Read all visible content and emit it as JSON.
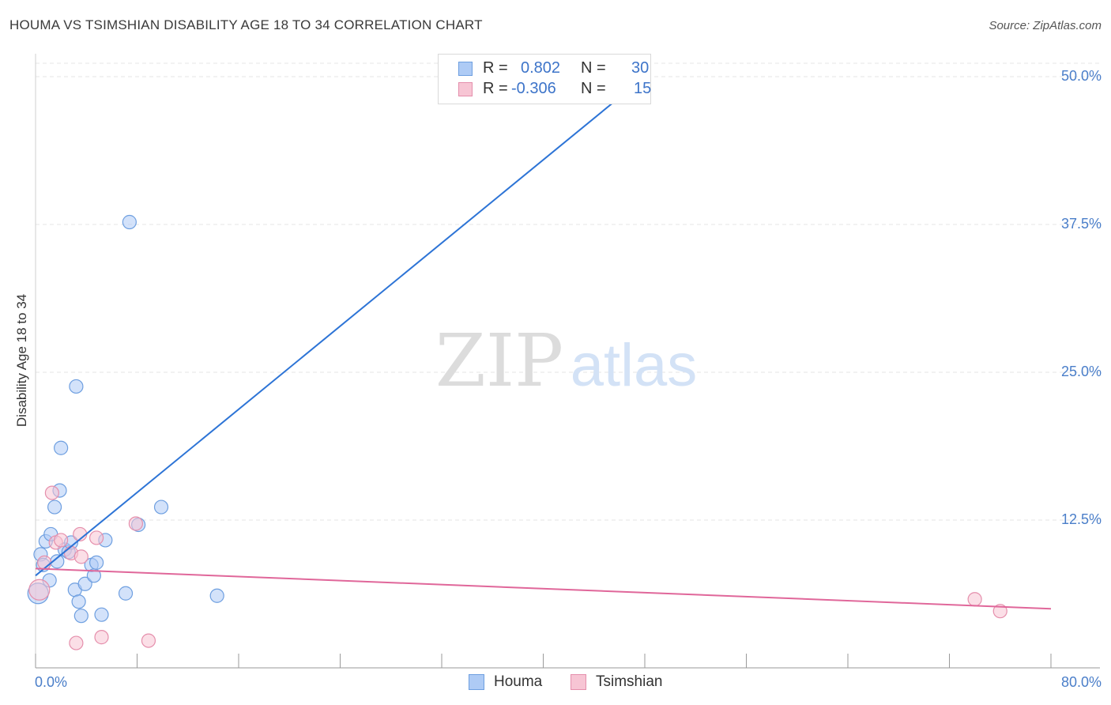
{
  "header": {
    "title": "HOUMA VS TSIMSHIAN DISABILITY AGE 18 TO 34 CORRELATION CHART",
    "source": "Source: ZipAtlas.com"
  },
  "watermark": {
    "zip": "ZIP",
    "atlas": "atlas"
  },
  "legend_top": {
    "rows": [
      {
        "r_label": "R =",
        "r_value": "0.802",
        "n_label": "N =",
        "n_value": "30",
        "color": "#aecbf5",
        "border": "#6e9fe0"
      },
      {
        "r_label": "R =",
        "r_value": "-0.306",
        "n_label": "N =",
        "n_value": "15",
        "color": "#f7c5d4",
        "border": "#e58fac"
      }
    ]
  },
  "legend_bottom": {
    "items": [
      "Houma",
      "Tsimshian"
    ]
  },
  "colors": {
    "houma_fill": "#aecbf5",
    "houma_stroke": "#6e9fe0",
    "houma_line": "#2d74d6",
    "tsimshian_fill": "#f7c5d4",
    "tsimshian_stroke": "#e58fac",
    "tsimshian_line": "#e0679a",
    "grid": "#e6e6e6",
    "tick_text": "#4a7ec9"
  },
  "chart_data": {
    "type": "scatter",
    "title": "HOUMA VS TSIMSHIAN DISABILITY AGE 18 TO 34 CORRELATION CHART",
    "xlabel": "",
    "ylabel": "Disability Age 18 to 34",
    "xlim": [
      0,
      80
    ],
    "ylim": [
      0,
      50
    ],
    "x_tick_labels": [
      "0.0%",
      "80.0%"
    ],
    "y_tick_labels": [
      "12.5%",
      "25.0%",
      "37.5%",
      "50.0%"
    ],
    "y_ticks": [
      12.5,
      25.0,
      37.5,
      50.0
    ],
    "grid": true,
    "legend_position": "bottom",
    "series": [
      {
        "name": "Houma",
        "points": [
          [
            0.2,
            6.3
          ],
          [
            0.4,
            9.6
          ],
          [
            0.6,
            8.7
          ],
          [
            0.8,
            10.7
          ],
          [
            1.1,
            7.4
          ],
          [
            1.2,
            11.3
          ],
          [
            1.5,
            13.6
          ],
          [
            1.7,
            9.0
          ],
          [
            1.9,
            15.0
          ],
          [
            2.0,
            18.6
          ],
          [
            2.3,
            10.0
          ],
          [
            2.6,
            9.8
          ],
          [
            2.8,
            10.6
          ],
          [
            3.1,
            6.6
          ],
          [
            3.2,
            23.8
          ],
          [
            3.4,
            5.6
          ],
          [
            3.6,
            4.4
          ],
          [
            3.9,
            7.1
          ],
          [
            4.4,
            8.7
          ],
          [
            4.6,
            7.8
          ],
          [
            4.8,
            8.9
          ],
          [
            5.2,
            4.5
          ],
          [
            5.5,
            10.8
          ],
          [
            7.1,
            6.3
          ],
          [
            7.4,
            37.7
          ],
          [
            8.1,
            12.1
          ],
          [
            9.9,
            13.6
          ],
          [
            14.3,
            6.1
          ],
          [
            46.3,
            48.3
          ],
          [
            47.4,
            48.5
          ]
        ],
        "trend": {
          "x": [
            0,
            48
          ],
          "y": [
            7.8,
            50.0
          ]
        }
      },
      {
        "name": "Tsimshian",
        "points": [
          [
            0.3,
            6.6
          ],
          [
            0.7,
            8.9
          ],
          [
            1.3,
            14.8
          ],
          [
            1.6,
            10.6
          ],
          [
            2.0,
            10.8
          ],
          [
            2.8,
            9.7
          ],
          [
            3.2,
            2.1
          ],
          [
            3.5,
            11.3
          ],
          [
            3.6,
            9.4
          ],
          [
            4.8,
            11.0
          ],
          [
            5.2,
            2.6
          ],
          [
            7.9,
            12.2
          ],
          [
            8.9,
            2.3
          ],
          [
            74.0,
            5.8
          ],
          [
            76.0,
            4.8
          ]
        ],
        "trend": {
          "x": [
            0,
            80
          ],
          "y": [
            8.4,
            5.0
          ]
        }
      }
    ]
  }
}
